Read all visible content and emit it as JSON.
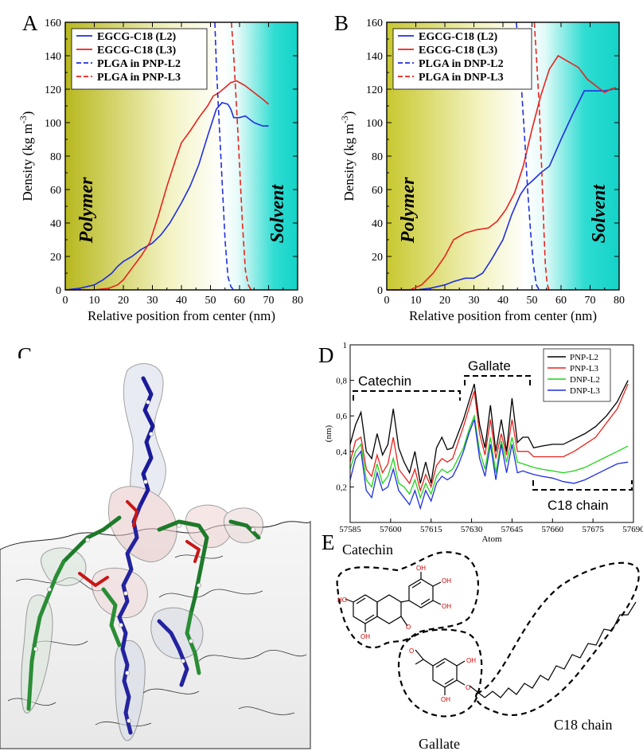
{
  "panels": {
    "a": "A",
    "b": "B",
    "c": "C",
    "d": "D",
    "e": "E"
  },
  "colors": {
    "l2": "#1f2fe0",
    "l3": "#e8231e",
    "dnp_l2": "#1fd41a",
    "black": "#000000"
  },
  "chart_data": [
    {
      "type": "line",
      "id": "A",
      "xlabel": "Relative position from center (nm)",
      "ylabel": "Density (kg m",
      "ylabel_sup": "-3",
      "ylabel_close": ")",
      "xlim": [
        0,
        80
      ],
      "ylim": [
        0,
        160
      ],
      "xticks": [
        0,
        10,
        20,
        30,
        40,
        50,
        60,
        70,
        80
      ],
      "yticks": [
        0,
        20,
        40,
        60,
        80,
        100,
        120,
        140,
        160
      ],
      "region_left": "Polymer",
      "region_right": "Solvent",
      "legend_position": "top-left",
      "series": [
        {
          "name": "EGCG-C18 (L2)",
          "color": "#1f2fe0",
          "dash": false,
          "x": [
            0,
            5,
            10,
            13,
            16,
            18,
            20,
            23,
            26,
            30,
            33,
            36,
            40,
            43,
            46,
            49,
            52,
            54,
            56,
            57,
            58,
            60,
            62,
            65,
            68,
            70
          ],
          "y": [
            0,
            1,
            3,
            6,
            10,
            14,
            17,
            20,
            24,
            28,
            33,
            40,
            52,
            62,
            75,
            92,
            108,
            112,
            111,
            108,
            103,
            103,
            104,
            100,
            98,
            98
          ]
        },
        {
          "name": "EGCG-C18 (L3)",
          "color": "#e8231e",
          "dash": false,
          "x": [
            0,
            10,
            15,
            18,
            20,
            23,
            26,
            29,
            32,
            35,
            38,
            40,
            43,
            46,
            49,
            51,
            53,
            55,
            57,
            59,
            62,
            65,
            68,
            70
          ],
          "y": [
            0,
            0,
            1,
            3,
            6,
            13,
            20,
            28,
            44,
            62,
            78,
            88,
            95,
            103,
            110,
            116,
            118,
            121,
            124,
            125,
            122,
            118,
            114,
            111
          ]
        },
        {
          "name": "PLGA in PNP-L2",
          "color": "#1f2fe0",
          "dash": true,
          "x": [
            51.5,
            52,
            53,
            54,
            55,
            56,
            57,
            58
          ],
          "y": [
            160,
            135,
            100,
            65,
            30,
            8,
            2,
            0
          ]
        },
        {
          "name": "PLGA in PNP-L3",
          "color": "#e8231e",
          "dash": true,
          "x": [
            57.2,
            58,
            59,
            60,
            61,
            62,
            63,
            64
          ],
          "y": [
            160,
            140,
            108,
            75,
            40,
            12,
            3,
            0
          ]
        }
      ]
    },
    {
      "type": "line",
      "id": "B",
      "xlabel": "Relative position from center (nm)",
      "ylabel": "Density (kg m",
      "ylabel_sup": "-3",
      "ylabel_close": ")",
      "xlim": [
        0,
        80
      ],
      "ylim": [
        0,
        160
      ],
      "xticks": [
        0,
        10,
        20,
        30,
        40,
        50,
        60,
        70,
        80
      ],
      "yticks": [
        0,
        20,
        40,
        60,
        80,
        100,
        120,
        140,
        160
      ],
      "region_left": "Polymer",
      "region_right": "Solvent",
      "legend_position": "top-left",
      "series": [
        {
          "name": "EGCG-C18 (L2)",
          "color": "#1f2fe0",
          "dash": false,
          "x": [
            0,
            10,
            15,
            20,
            23,
            27,
            30,
            33,
            36,
            40,
            43,
            46,
            48,
            50,
            53,
            56,
            60,
            64,
            68,
            72,
            75,
            78
          ],
          "y": [
            0,
            0,
            1,
            3,
            5,
            7,
            7,
            10,
            18,
            30,
            45,
            57,
            62,
            65,
            70,
            74,
            90,
            105,
            119,
            119,
            119,
            120
          ]
        },
        {
          "name": "EGCG-C18 (L3)",
          "color": "#e8231e",
          "dash": false,
          "x": [
            0,
            8,
            12,
            16,
            20,
            23,
            27,
            31,
            35,
            38,
            41,
            44,
            47,
            50,
            53,
            56,
            59,
            62,
            66,
            69,
            72,
            75,
            77,
            79
          ],
          "y": [
            0,
            0,
            3,
            10,
            20,
            30,
            34,
            36,
            37,
            41,
            48,
            58,
            74,
            96,
            116,
            132,
            140,
            137,
            133,
            126,
            122,
            118,
            120,
            121
          ]
        },
        {
          "name": "PLGA in DNP-L2",
          "color": "#1f2fe0",
          "dash": true,
          "x": [
            44.6,
            45.5,
            46.5,
            47.5,
            48.5,
            49.5,
            50.5,
            51.5,
            52.5
          ],
          "y": [
            160,
            142,
            118,
            90,
            60,
            35,
            15,
            3,
            0
          ]
        },
        {
          "name": "PLGA in DNP-L3",
          "color": "#e8231e",
          "dash": true,
          "x": [
            50.8,
            51.5,
            52.5,
            53.3,
            54,
            54.6,
            55.2,
            55.8
          ],
          "y": [
            160,
            140,
            110,
            75,
            40,
            15,
            4,
            0
          ]
        }
      ]
    },
    {
      "type": "line",
      "id": "D",
      "xlabel": "Atom",
      "ylabel": "(nm)",
      "xlim": [
        57585,
        57690
      ],
      "ylim": [
        0,
        1
      ],
      "xticks": [
        57585,
        57600,
        57615,
        57630,
        57645,
        57660,
        57675,
        57690
      ],
      "yticks": [
        0.2,
        0.4,
        0.6,
        0.8,
        1
      ],
      "ytick_labels": [
        "0,2",
        "0,4",
        "0,6",
        "0,8",
        "1"
      ],
      "legend_position": "top-right",
      "annotations": [
        "Catechin",
        "Gallate",
        "C18 chain"
      ],
      "series": [
        {
          "name": "PNP-L2",
          "color": "#000000",
          "x": [
            57585,
            57587,
            57589,
            57591,
            57593,
            57595,
            57597,
            57599,
            57601,
            57603,
            57605,
            57607,
            57609,
            57611,
            57613,
            57615,
            57617,
            57619,
            57621,
            57623,
            57625,
            57627,
            57629,
            57631,
            57633,
            57635,
            57637,
            57639,
            57641,
            57643,
            57645,
            57647,
            57649,
            57651,
            57653,
            57656,
            57660,
            57664,
            57668,
            57672,
            57676,
            57680,
            57684,
            57688
          ],
          "y": [
            0.44,
            0.55,
            0.62,
            0.4,
            0.36,
            0.5,
            0.38,
            0.44,
            0.64,
            0.42,
            0.34,
            0.28,
            0.4,
            0.22,
            0.34,
            0.22,
            0.42,
            0.48,
            0.41,
            0.42,
            0.5,
            0.58,
            0.68,
            0.78,
            0.55,
            0.42,
            0.66,
            0.4,
            0.58,
            0.4,
            0.7,
            0.45,
            0.48,
            0.48,
            0.42,
            0.43,
            0.44,
            0.44,
            0.47,
            0.5,
            0.54,
            0.6,
            0.68,
            0.8
          ]
        },
        {
          "name": "PNP-L3",
          "color": "#e8231e",
          "x": [
            57585,
            57587,
            57589,
            57591,
            57593,
            57595,
            57597,
            57599,
            57601,
            57603,
            57605,
            57607,
            57609,
            57611,
            57613,
            57615,
            57617,
            57619,
            57621,
            57623,
            57625,
            57627,
            57629,
            57631,
            57633,
            57635,
            57637,
            57639,
            57641,
            57643,
            57645,
            57647,
            57649,
            57651,
            57653,
            57656,
            57660,
            57664,
            57668,
            57672,
            57676,
            57680,
            57684,
            57688
          ],
          "y": [
            0.34,
            0.46,
            0.48,
            0.3,
            0.26,
            0.38,
            0.28,
            0.33,
            0.48,
            0.3,
            0.26,
            0.22,
            0.3,
            0.18,
            0.27,
            0.2,
            0.32,
            0.36,
            0.34,
            0.36,
            0.45,
            0.54,
            0.64,
            0.74,
            0.5,
            0.38,
            0.58,
            0.36,
            0.5,
            0.38,
            0.58,
            0.4,
            0.4,
            0.4,
            0.37,
            0.37,
            0.37,
            0.37,
            0.4,
            0.44,
            0.48,
            0.56,
            0.64,
            0.78
          ]
        },
        {
          "name": "DNP-L2",
          "color": "#1fd41a",
          "x": [
            57585,
            57587,
            57589,
            57591,
            57593,
            57595,
            57597,
            57599,
            57601,
            57603,
            57605,
            57607,
            57609,
            57611,
            57613,
            57615,
            57617,
            57619,
            57621,
            57623,
            57625,
            57627,
            57629,
            57631,
            57633,
            57635,
            57637,
            57639,
            57641,
            57643,
            57645,
            57647,
            57649,
            57651,
            57653,
            57656,
            57660,
            57664,
            57668,
            57672,
            57676,
            57680,
            57684,
            57688
          ],
          "y": [
            0.3,
            0.4,
            0.44,
            0.24,
            0.2,
            0.33,
            0.22,
            0.26,
            0.36,
            0.22,
            0.2,
            0.16,
            0.24,
            0.14,
            0.22,
            0.16,
            0.26,
            0.3,
            0.28,
            0.3,
            0.36,
            0.42,
            0.52,
            0.6,
            0.4,
            0.3,
            0.48,
            0.28,
            0.46,
            0.34,
            0.48,
            0.34,
            0.33,
            0.32,
            0.31,
            0.3,
            0.29,
            0.28,
            0.29,
            0.31,
            0.34,
            0.37,
            0.4,
            0.43
          ]
        },
        {
          "name": "DNP-L3",
          "color": "#1f2fe0",
          "x": [
            57585,
            57587,
            57589,
            57591,
            57593,
            57595,
            57597,
            57599,
            57601,
            57603,
            57605,
            57607,
            57609,
            57611,
            57613,
            57615,
            57617,
            57619,
            57621,
            57623,
            57625,
            57627,
            57629,
            57631,
            57633,
            57635,
            57637,
            57639,
            57641,
            57643,
            57645,
            57647,
            57649,
            57651,
            57653,
            57656,
            57660,
            57664,
            57668,
            57672,
            57676,
            57680,
            57684,
            57688
          ],
          "y": [
            0.24,
            0.36,
            0.4,
            0.18,
            0.14,
            0.28,
            0.18,
            0.2,
            0.3,
            0.18,
            0.14,
            0.1,
            0.18,
            0.08,
            0.18,
            0.12,
            0.22,
            0.26,
            0.24,
            0.26,
            0.32,
            0.4,
            0.5,
            0.58,
            0.36,
            0.26,
            0.44,
            0.24,
            0.44,
            0.28,
            0.44,
            0.28,
            0.29,
            0.28,
            0.27,
            0.26,
            0.25,
            0.23,
            0.22,
            0.24,
            0.27,
            0.3,
            0.33,
            0.34
          ]
        }
      ]
    }
  ],
  "panel_c": {
    "description_labels": []
  },
  "panel_e": {
    "labels": {
      "catechin": "Catechin",
      "gallate": "Gallate",
      "c18": "C18 chain"
    },
    "atoms": {
      "oh": "OH",
      "ho": "HO",
      "o": "O"
    }
  }
}
